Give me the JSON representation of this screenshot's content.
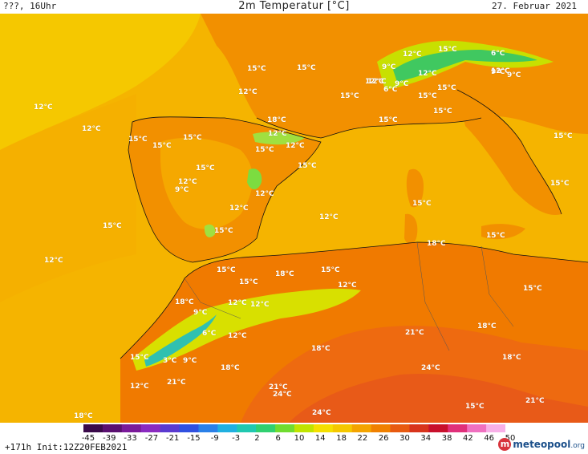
{
  "header": {
    "left": "???, 16Uhr",
    "title": "2m Temperatur [°C]",
    "right": "27. Februar 2021"
  },
  "map": {
    "region": "Western Mediterranean / Iberia / North Africa",
    "colors": {
      "sea_12": "#f5c800",
      "sea_15": "#f4a400",
      "land_15": "#f29000",
      "land_18": "#f07a00",
      "land_21": "#ee6a10",
      "land_24": "#e85a18",
      "cool_9": "#d8e000",
      "cool_6": "#7cdc40",
      "cool_3": "#20c080",
      "cool_0": "#20b0d0"
    },
    "labels": [
      {
        "text": "12°C"
      },
      {
        "text": "12°C"
      },
      {
        "text": "15°C"
      },
      {
        "text": "15°C"
      },
      {
        "text": "15°C"
      },
      {
        "text": "18°C"
      },
      {
        "text": "15°C"
      },
      {
        "text": "12°C"
      },
      {
        "text": "12°C"
      },
      {
        "text": "15°C"
      },
      {
        "text": "12°C"
      },
      {
        "text": "15°C"
      },
      {
        "text": "15°C"
      },
      {
        "text": "12°C"
      },
      {
        "text": "9°C"
      },
      {
        "text": "12°C"
      },
      {
        "text": "12°C"
      },
      {
        "text": "15°C"
      },
      {
        "text": "15°C"
      },
      {
        "text": "12°C"
      },
      {
        "text": "15°C"
      },
      {
        "text": "12°C"
      },
      {
        "text": "15°C"
      },
      {
        "text": "12°C"
      },
      {
        "text": "9°C"
      },
      {
        "text": "6°C"
      },
      {
        "text": "9°C"
      },
      {
        "text": "12°C"
      },
      {
        "text": "15°C"
      },
      {
        "text": "12°C"
      },
      {
        "text": "12°C"
      },
      {
        "text": "6°C"
      },
      {
        "text": "9°C"
      },
      {
        "text": "9°C"
      },
      {
        "text": "12°C"
      },
      {
        "text": "15°C"
      },
      {
        "text": "15°C"
      },
      {
        "text": "15°C"
      },
      {
        "text": "15°C"
      },
      {
        "text": "15°C"
      },
      {
        "text": "15°C"
      },
      {
        "text": "15°C"
      },
      {
        "text": "18°C"
      },
      {
        "text": "15°C"
      },
      {
        "text": "15°C"
      },
      {
        "text": "12°C"
      },
      {
        "text": "12°C"
      },
      {
        "text": "18°C"
      },
      {
        "text": "9°C"
      },
      {
        "text": "12°C"
      },
      {
        "text": "15°C"
      },
      {
        "text": "15°C"
      },
      {
        "text": "6°C"
      },
      {
        "text": "12°C"
      },
      {
        "text": "15°C"
      },
      {
        "text": "3°C"
      },
      {
        "text": "9°C"
      },
      {
        "text": "18°C"
      },
      {
        "text": "18°C"
      },
      {
        "text": "21°C"
      },
      {
        "text": "12°C"
      },
      {
        "text": "21°C"
      },
      {
        "text": "24°C"
      },
      {
        "text": "21°C"
      },
      {
        "text": "24°C"
      },
      {
        "text": "18°C"
      },
      {
        "text": "18°C"
      },
      {
        "text": "21°C"
      },
      {
        "text": "24°C"
      },
      {
        "text": "15°C"
      },
      {
        "text": "18°C"
      },
      {
        "text": "15°C"
      },
      {
        "text": "18°C"
      }
    ]
  },
  "colorbar": {
    "ticks": [
      "-45",
      "-39",
      "-33",
      "-27",
      "-21",
      "-15",
      "-9",
      "-3",
      "2",
      "6",
      "10",
      "14",
      "18",
      "22",
      "26",
      "30",
      "34",
      "38",
      "42",
      "46",
      "50"
    ],
    "colors": [
      "#3a0a4a",
      "#5a1070",
      "#7a1a9a",
      "#8a2ac0",
      "#5a3ad0",
      "#3050e0",
      "#2a80e8",
      "#20b0e0",
      "#20c8b0",
      "#30d070",
      "#70dc30",
      "#c0e400",
      "#f5e000",
      "#f5c800",
      "#f4a400",
      "#f08000",
      "#e85a10",
      "#d8341c",
      "#c8102c",
      "#e0307a",
      "#f070c0",
      "#f8b0e8"
    ]
  },
  "footer": {
    "init": "+171h Init:12Z20FEB2021",
    "logo_mark": "m",
    "logo_name": "meteopool",
    "logo_tld": ".org"
  }
}
